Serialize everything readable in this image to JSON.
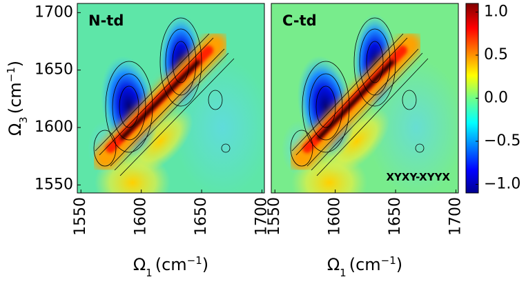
{
  "chart_data": [
    {
      "type": "contour",
      "label": "N-td",
      "xlabel_parts": [
        "Ω",
        "1",
        "(cm",
        "−1",
        ")"
      ],
      "ylabel_parts": [
        "Ω",
        "3",
        "(cm",
        "−1",
        ")"
      ],
      "xlim": [
        1547,
        1702
      ],
      "ylim": [
        1543,
        1708
      ],
      "xticks": [
        1550,
        1600,
        1650,
        1700
      ],
      "yticks": [
        1550,
        1600,
        1650,
        1700
      ]
    },
    {
      "type": "contour",
      "label": "C-td",
      "annotation": "XYXY-XYYX",
      "xlabel_parts": [
        "Ω",
        "1",
        "(cm",
        "−1",
        ")"
      ],
      "xlim": [
        1547,
        1702
      ],
      "ylim": [
        1543,
        1708
      ],
      "xticks": [
        1550,
        1600,
        1650,
        1700
      ],
      "colorbar": {
        "lim": [
          -1.1,
          1.1
        ],
        "ticks": [
          {
            "value": -1.0,
            "label": "−1.0"
          },
          {
            "value": -0.5,
            "label": "−0.5"
          },
          {
            "value": 0.0,
            "label": "0.0"
          },
          0.5,
          {
            "value": 1.0,
            "label": "1.0"
          }
        ]
      }
    }
  ]
}
